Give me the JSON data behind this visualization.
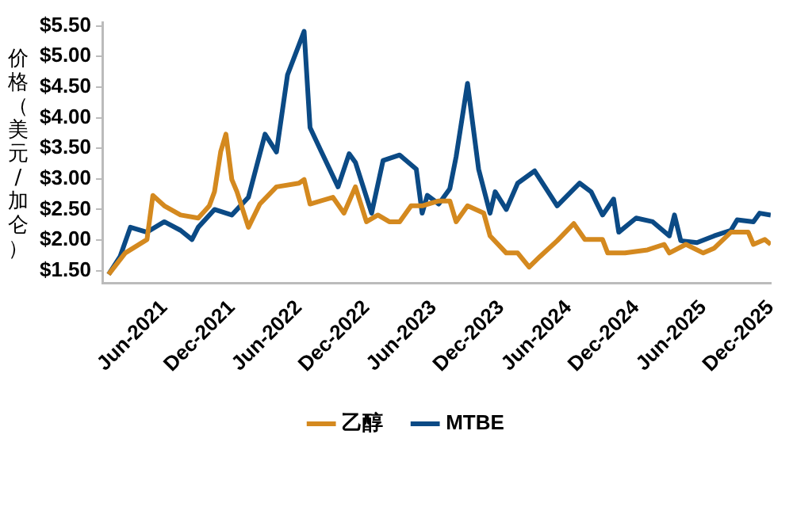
{
  "chart_data": {
    "type": "line",
    "ylabel": "价格（美元/加仑）",
    "legend": "bottom",
    "grid": false,
    "marker": "none",
    "line_style": "solid",
    "xlim": [
      "2020-12-15",
      "2025-12-01"
    ],
    "xticks": [
      {
        "value": "2021-06-01",
        "label": "Jun-2021"
      },
      {
        "value": "2021-12-01",
        "label": "Dec-2021"
      },
      {
        "value": "2022-06-01",
        "label": "Jun-2022"
      },
      {
        "value": "2022-12-01",
        "label": "Dec-2022"
      },
      {
        "value": "2023-06-01",
        "label": "Jun-2023"
      },
      {
        "value": "2023-12-01",
        "label": "Dec-2023"
      },
      {
        "value": "2024-06-01",
        "label": "Jun-2024"
      },
      {
        "value": "2024-12-01",
        "label": "Dec-2024"
      },
      {
        "value": "2025-06-01",
        "label": "Jun-2025"
      },
      {
        "value": "2025-12-01",
        "label": "Dec-2025"
      }
    ],
    "ylim": [
      1.3,
      5.56
    ],
    "yticks": [
      {
        "value": 1.5,
        "label": "$1.50"
      },
      {
        "value": 2,
        "label": "$2.00"
      },
      {
        "value": 2.5,
        "label": "$2.50"
      },
      {
        "value": 3,
        "label": "$3.00"
      },
      {
        "value": 3.5,
        "label": "$3.50"
      },
      {
        "value": 4,
        "label": "$4.00"
      },
      {
        "value": 4.5,
        "label": "$4.50"
      },
      {
        "value": 5,
        "label": "$5.00"
      },
      {
        "value": 5.5,
        "label": "$5.50"
      }
    ],
    "series": [
      {
        "name": "乙醇",
        "color": "#d4891f",
        "x": [
          "2021-01-01",
          "2021-02-15",
          "2021-04-15",
          "2021-05-01",
          "2021-06-01",
          "2021-07-15",
          "2021-09-01",
          "2021-10-01",
          "2021-10-15",
          "2021-11-01",
          "2021-11-15",
          "2021-12-01",
          "2021-12-15",
          "2022-01-15",
          "2022-02-15",
          "2022-04-01",
          "2022-06-01",
          "2022-06-15",
          "2022-07-01",
          "2022-09-01",
          "2022-10-01",
          "2022-11-01",
          "2022-12-01",
          "2023-01-01",
          "2023-02-01",
          "2023-03-01",
          "2023-04-01",
          "2023-05-01",
          "2023-06-15",
          "2023-07-15",
          "2023-08-01",
          "2023-09-01",
          "2023-10-15",
          "2023-11-01",
          "2023-12-15",
          "2024-01-15",
          "2024-02-15",
          "2024-03-15",
          "2024-05-01",
          "2024-06-15",
          "2024-07-15",
          "2024-09-01",
          "2024-09-15",
          "2024-11-01",
          "2025-01-01",
          "2025-02-15",
          "2025-03-01",
          "2025-04-15",
          "2025-06-01",
          "2025-07-01",
          "2025-08-15",
          "2025-10-01",
          "2025-10-15",
          "2025-11-15",
          "2025-12-01"
        ],
        "values": [
          1.44,
          1.79,
          2.01,
          2.73,
          2.56,
          2.41,
          2.36,
          2.56,
          2.79,
          3.45,
          3.73,
          2.99,
          2.79,
          2.21,
          2.59,
          2.87,
          2.93,
          2.99,
          2.59,
          2.7,
          2.44,
          2.87,
          2.3,
          2.41,
          2.3,
          2.3,
          2.56,
          2.56,
          2.64,
          2.64,
          2.3,
          2.56,
          2.44,
          2.07,
          1.79,
          1.79,
          1.56,
          1.73,
          1.99,
          2.27,
          2.01,
          2.01,
          1.79,
          1.79,
          1.84,
          1.93,
          1.79,
          1.93,
          1.79,
          1.87,
          2.13,
          2.13,
          1.93,
          2.01,
          1.93
        ]
      },
      {
        "name": "MTBE",
        "color": "#0b4a85",
        "x": [
          "2021-01-01",
          "2021-02-01",
          "2021-03-01",
          "2021-04-15",
          "2021-06-01",
          "2021-07-15",
          "2021-08-15",
          "2021-09-01",
          "2021-10-15",
          "2021-12-01",
          "2022-01-15",
          "2022-03-01",
          "2022-04-01",
          "2022-05-01",
          "2022-06-15",
          "2022-07-01",
          "2022-08-01",
          "2022-09-15",
          "2022-10-15",
          "2022-11-01",
          "2022-12-15",
          "2023-01-15",
          "2023-03-01",
          "2023-04-15",
          "2023-05-01",
          "2023-05-15",
          "2023-06-15",
          "2023-07-15",
          "2023-08-01",
          "2023-09-01",
          "2023-10-01",
          "2023-11-01",
          "2023-11-15",
          "2023-12-15",
          "2024-01-15",
          "2024-03-01",
          "2024-04-01",
          "2024-05-01",
          "2024-07-01",
          "2024-08-01",
          "2024-09-01",
          "2024-10-01",
          "2024-10-15",
          "2024-12-01",
          "2025-01-15",
          "2025-03-01",
          "2025-03-15",
          "2025-04-01",
          "2025-05-15",
          "2025-07-01",
          "2025-08-15",
          "2025-09-01",
          "2025-10-15",
          "2025-11-01",
          "2025-12-01"
        ],
        "values": [
          1.44,
          1.73,
          2.21,
          2.13,
          2.3,
          2.16,
          2.01,
          2.21,
          2.5,
          2.41,
          2.7,
          3.73,
          3.44,
          4.7,
          5.41,
          3.84,
          3.44,
          2.87,
          3.41,
          3.27,
          2.44,
          3.3,
          3.39,
          3.16,
          2.44,
          2.73,
          2.59,
          2.84,
          3.36,
          4.56,
          3.16,
          2.44,
          2.79,
          2.5,
          2.93,
          3.13,
          2.84,
          2.56,
          2.93,
          2.79,
          2.41,
          2.67,
          2.13,
          2.36,
          2.3,
          2.07,
          2.41,
          1.99,
          1.96,
          2.07,
          2.16,
          2.33,
          2.3,
          2.44,
          2.41
        ]
      }
    ]
  }
}
